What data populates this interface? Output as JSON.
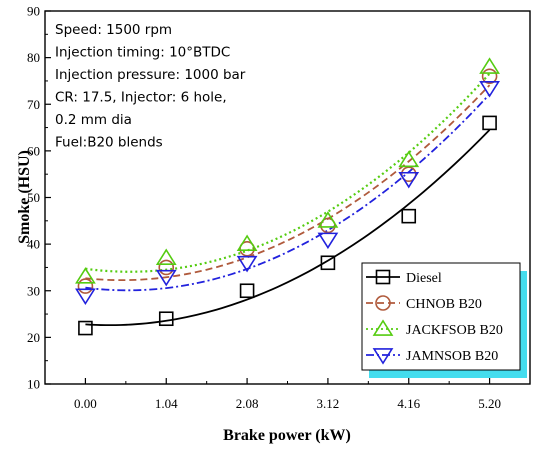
{
  "chart_data": {
    "type": "line",
    "x": [
      0.0,
      1.04,
      2.08,
      3.12,
      4.16,
      5.2
    ],
    "x_tick_labels": [
      "0.00",
      "1.04",
      "2.08",
      "3.12",
      "4.16",
      "5.20"
    ],
    "y_ticks": [
      10,
      20,
      30,
      40,
      50,
      60,
      70,
      80,
      90
    ],
    "xlim": [
      -0.52,
      5.72
    ],
    "ylim": [
      10,
      90
    ],
    "xlabel": "Brake power (kW)",
    "ylabel": "Smoke (HSU)",
    "grid": false,
    "legend_position": "bottom-right",
    "annotations": [
      "Speed: 1500 rpm",
      "Injection timing: 10°BTDC",
      "Injection pressure: 1000 bar",
      "CR: 17.5, Injector: 6 hole,",
      "0.2 mm dia",
      "Fuel:B20 blends"
    ],
    "series": [
      {
        "name": "Diesel",
        "values": [
          22,
          24,
          30,
          36,
          46,
          66
        ],
        "color": "#000000",
        "marker": "square",
        "line": "solid",
        "fit": "smooth"
      },
      {
        "name": "CHNOB B20",
        "values": [
          31,
          35,
          39,
          44,
          55,
          76
        ],
        "color": "#b05a3c",
        "marker": "circle",
        "line": "dashed",
        "fit": "smooth"
      },
      {
        "name": "JACKFSOB B20",
        "values": [
          33,
          37,
          40,
          45,
          58,
          78
        ],
        "color": "#55cc11",
        "marker": "triangle-up",
        "line": "dotted",
        "fit": "smooth"
      },
      {
        "name": "JAMNSOB B20",
        "values": [
          29,
          33,
          36,
          41,
          54,
          73.5
        ],
        "color": "#2222dd",
        "marker": "triangle-down",
        "line": "dashdot",
        "fit": "smooth"
      }
    ]
  }
}
